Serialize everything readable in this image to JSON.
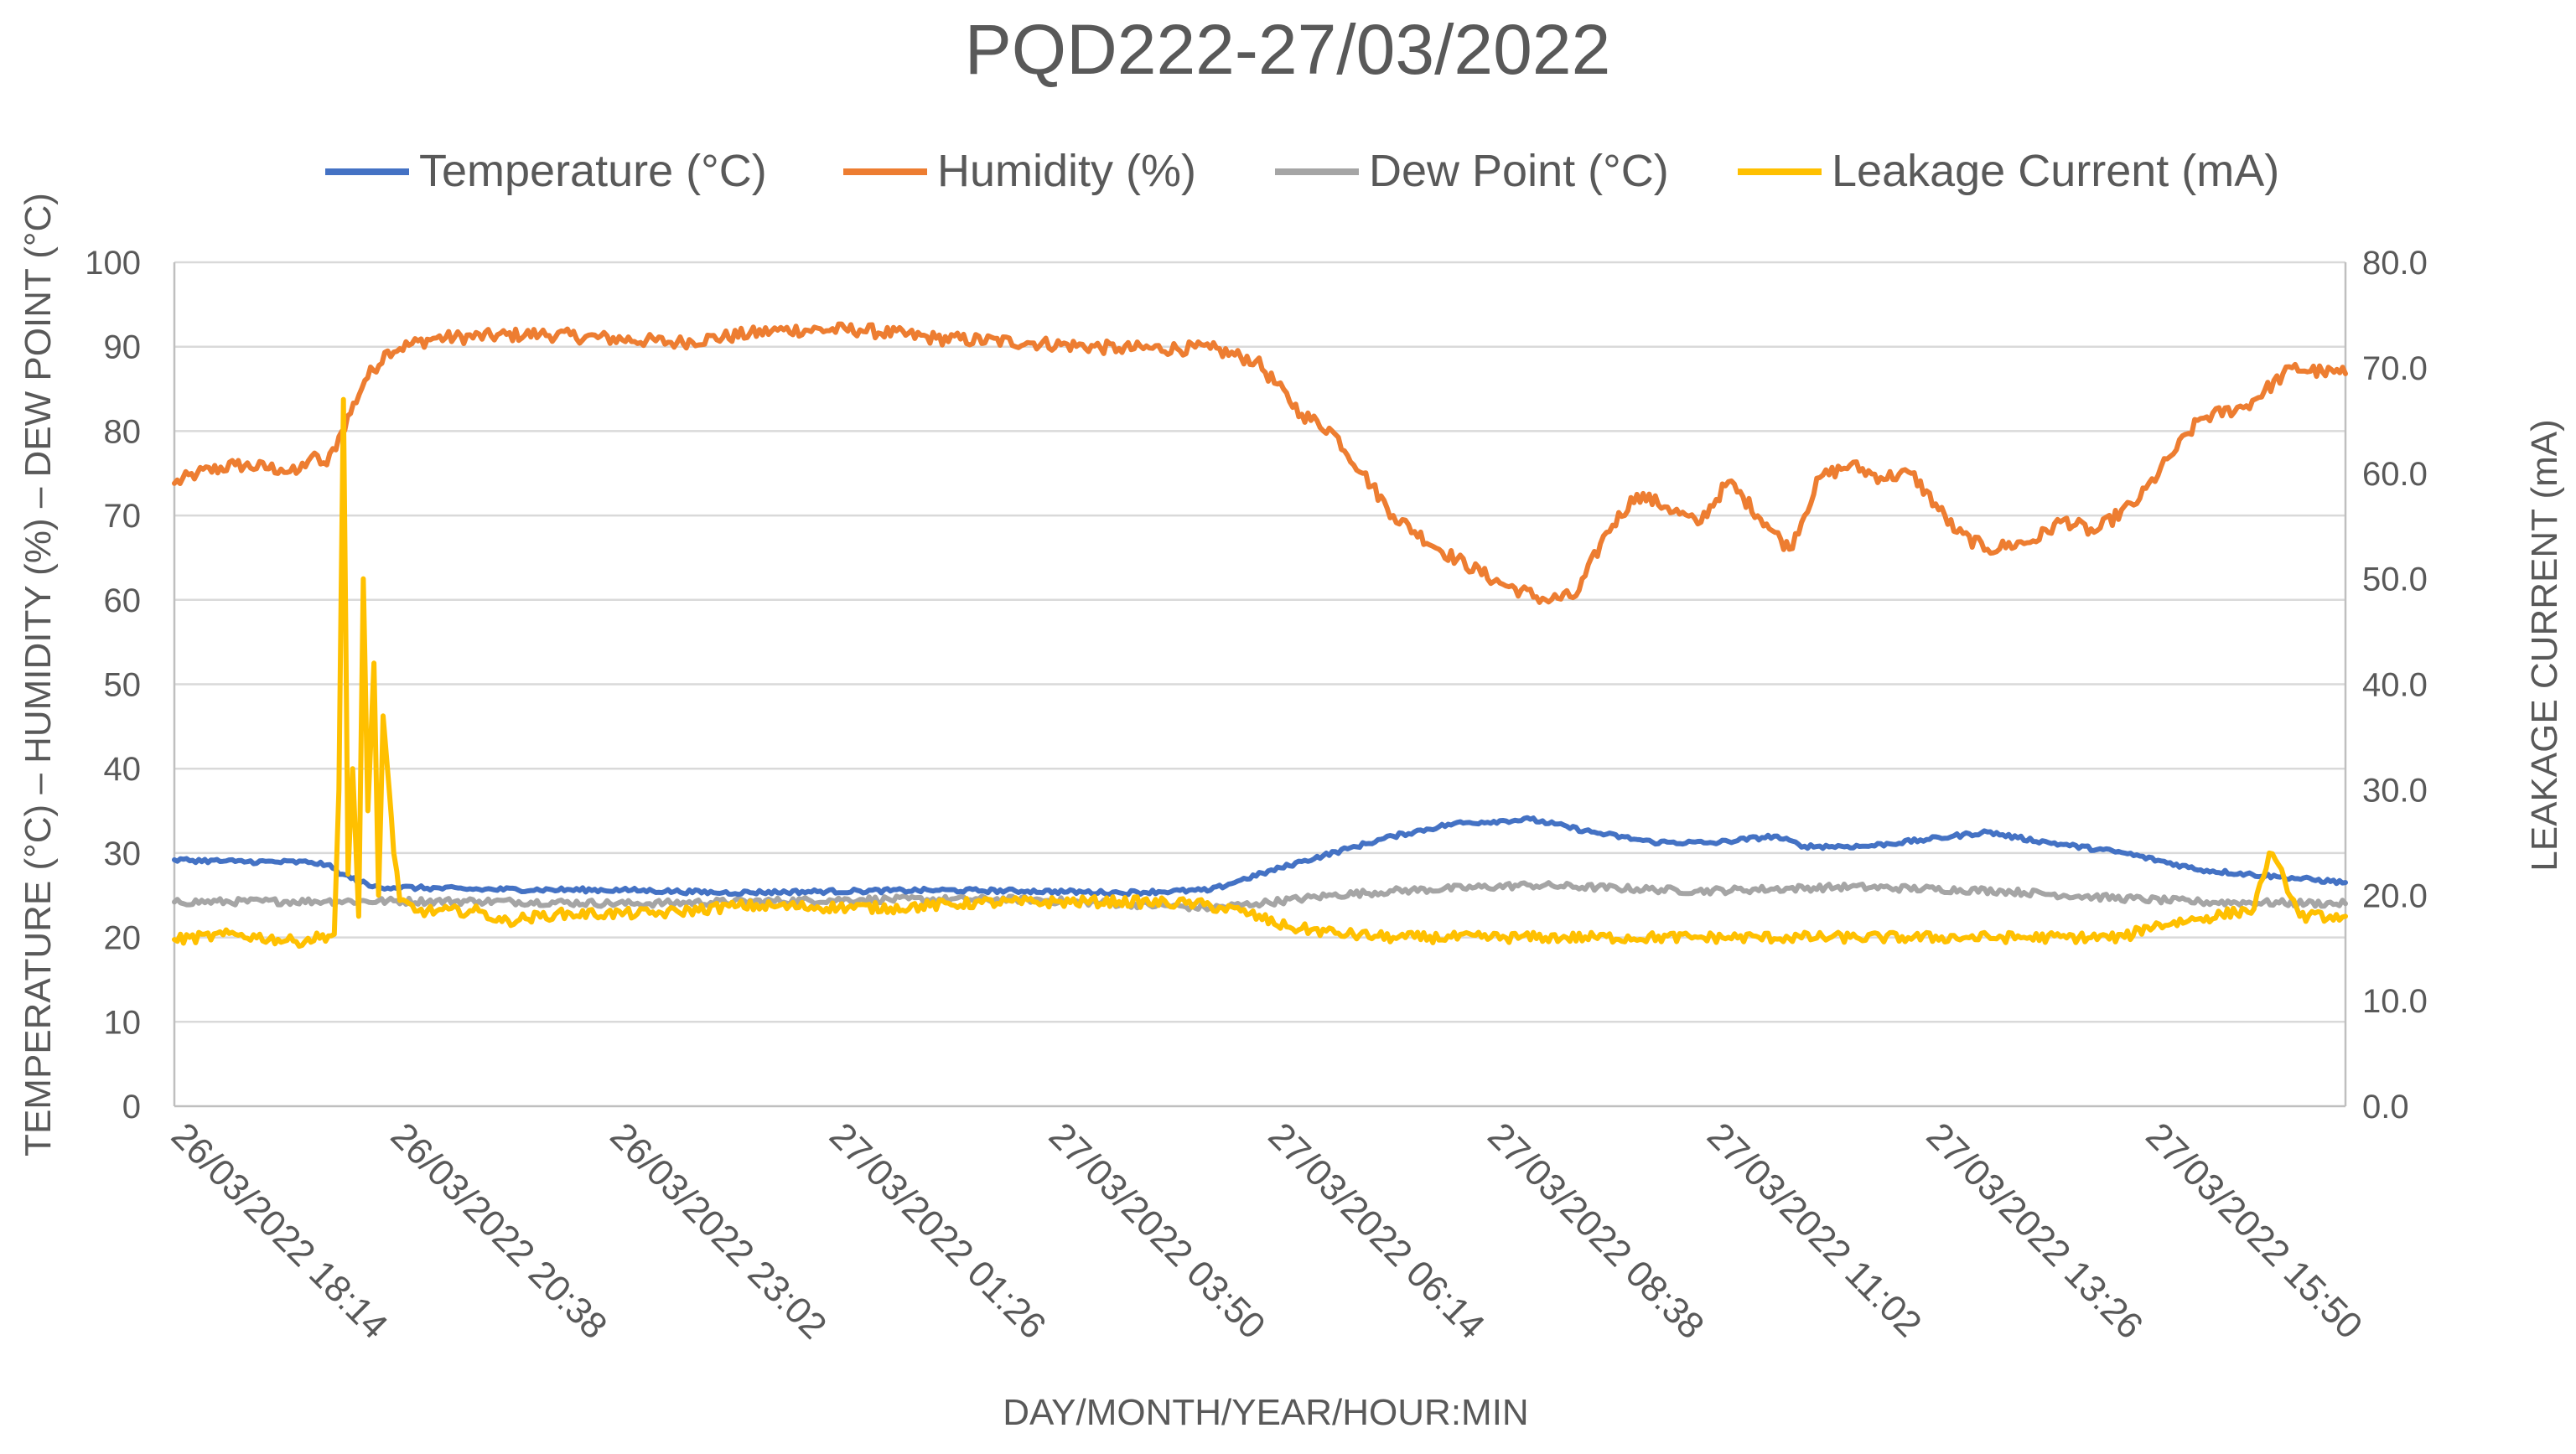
{
  "chart_data": {
    "type": "line",
    "title": "PQD222-27/03/2022",
    "xlabel": "DAY/MONTH/YEAR/HOUR:MIN",
    "ylabel": "TEMPERATURE (°C) – HUMIDITY (%) – DEW POINT (°C)",
    "y2label": "LEAKAGE CURRENT (mA)",
    "ylim": [
      0,
      100
    ],
    "y2lim": [
      0,
      80
    ],
    "y_ticks": [
      "0",
      "10",
      "20",
      "30",
      "40",
      "50",
      "60",
      "70",
      "80",
      "90",
      "100"
    ],
    "y2_ticks": [
      "0.0",
      "10.0",
      "20.0",
      "30.0",
      "40.0",
      "50.0",
      "60.0",
      "70.0",
      "80.0"
    ],
    "x_tick_labels": [
      "26/03/2022 18:14",
      "26/03/2022 20:38",
      "26/03/2022 23:02",
      "27/03/2022 01:26",
      "27/03/2022 03:50",
      "27/03/2022 06:14",
      "27/03/2022 08:38",
      "27/03/2022 11:02",
      "27/03/2022 13:26",
      "27/03/2022 15:50"
    ],
    "x_unit": "minutes since 26/03/2022 18:14",
    "xlim": [
      0,
      1425
    ],
    "legend_position": "top",
    "grid": true,
    "series": [
      {
        "name": "Temperature (°C)",
        "axis": "left",
        "color": "#4472C4",
        "points": [
          [
            0,
            29.2
          ],
          [
            40,
            29.0
          ],
          [
            90,
            28.9
          ],
          [
            100,
            28.6
          ],
          [
            110,
            27.5
          ],
          [
            130,
            26.0
          ],
          [
            200,
            25.7
          ],
          [
            300,
            25.6
          ],
          [
            360,
            25.3
          ],
          [
            450,
            25.5
          ],
          [
            500,
            25.6
          ],
          [
            560,
            25.5
          ],
          [
            620,
            25.3
          ],
          [
            680,
            25.6
          ],
          [
            700,
            26.8
          ],
          [
            740,
            29.0
          ],
          [
            770,
            30.5
          ],
          [
            800,
            32.0
          ],
          [
            840,
            33.5
          ],
          [
            890,
            34.0
          ],
          [
            930,
            32.5
          ],
          [
            970,
            31.3
          ],
          [
            1010,
            31.2
          ],
          [
            1050,
            32.0
          ],
          [
            1070,
            30.8
          ],
          [
            1110,
            30.8
          ],
          [
            1150,
            31.6
          ],
          [
            1190,
            32.5
          ],
          [
            1210,
            31.8
          ],
          [
            1240,
            31.0
          ],
          [
            1280,
            30.0
          ],
          [
            1330,
            28.0
          ],
          [
            1380,
            27.2
          ],
          [
            1425,
            26.5
          ]
        ],
        "noise": 0.25
      },
      {
        "name": "Humidity (%)",
        "axis": "left",
        "color": "#ED7D31",
        "points": [
          [
            0,
            73.8
          ],
          [
            15,
            75.0
          ],
          [
            40,
            76.0
          ],
          [
            70,
            75.5
          ],
          [
            80,
            75.0
          ],
          [
            90,
            77.0
          ],
          [
            100,
            76.0
          ],
          [
            110,
            80.0
          ],
          [
            125,
            86.0
          ],
          [
            140,
            89.5
          ],
          [
            170,
            91.0
          ],
          [
            240,
            91.5
          ],
          [
            330,
            90.5
          ],
          [
            400,
            92.0
          ],
          [
            450,
            92.0
          ],
          [
            500,
            91.0
          ],
          [
            560,
            90.5
          ],
          [
            620,
            89.8
          ],
          [
            680,
            89.8
          ],
          [
            710,
            88.3
          ],
          [
            740,
            82.0
          ],
          [
            760,
            80.0
          ],
          [
            780,
            75.0
          ],
          [
            800,
            70.0
          ],
          [
            830,
            66.0
          ],
          [
            870,
            62.0
          ],
          [
            900,
            60.0
          ],
          [
            920,
            60.5
          ],
          [
            940,
            68.0
          ],
          [
            960,
            72.5
          ],
          [
            980,
            71.0
          ],
          [
            1000,
            69.0
          ],
          [
            1020,
            74.0
          ],
          [
            1045,
            69.0
          ],
          [
            1060,
            66.0
          ],
          [
            1080,
            74.5
          ],
          [
            1100,
            76.0
          ],
          [
            1120,
            74.5
          ],
          [
            1140,
            75.0
          ],
          [
            1170,
            68.0
          ],
          [
            1190,
            66.0
          ],
          [
            1220,
            67.0
          ],
          [
            1240,
            69.5
          ],
          [
            1260,
            68.0
          ],
          [
            1290,
            72.0
          ],
          [
            1310,
            77.0
          ],
          [
            1330,
            81.5
          ],
          [
            1360,
            83.0
          ],
          [
            1390,
            87.5
          ],
          [
            1410,
            87.0
          ],
          [
            1425,
            86.8
          ]
        ],
        "noise": 0.8
      },
      {
        "name": "Dew Point (°C)",
        "axis": "left",
        "color": "#A5A5A5",
        "points": [
          [
            0,
            24.2
          ],
          [
            100,
            24.3
          ],
          [
            200,
            24.3
          ],
          [
            300,
            24.0
          ],
          [
            450,
            24.5
          ],
          [
            560,
            24.5
          ],
          [
            680,
            23.5
          ],
          [
            710,
            24.0
          ],
          [
            760,
            25.0
          ],
          [
            800,
            25.5
          ],
          [
            890,
            26.2
          ],
          [
            1000,
            25.5
          ],
          [
            1100,
            26.0
          ],
          [
            1200,
            25.5
          ],
          [
            1260,
            24.8
          ],
          [
            1330,
            24.2
          ],
          [
            1425,
            24.0
          ]
        ],
        "noise": 0.4
      },
      {
        "name": "Leakage Current (mA)",
        "axis": "right",
        "color": "#FFC000",
        "points": [
          [
            0,
            15.8
          ],
          [
            40,
            16.3
          ],
          [
            80,
            15.6
          ],
          [
            105,
            16.3
          ],
          [
            108,
            30
          ],
          [
            111,
            67
          ],
          [
            114,
            22
          ],
          [
            117,
            32
          ],
          [
            121,
            18
          ],
          [
            124,
            50
          ],
          [
            127,
            28
          ],
          [
            131,
            42
          ],
          [
            134,
            20
          ],
          [
            137,
            37
          ],
          [
            141,
            30
          ],
          [
            144,
            24
          ],
          [
            148,
            19.5
          ],
          [
            160,
            18.5
          ],
          [
            200,
            18.5
          ],
          [
            215,
            17.5
          ],
          [
            250,
            18.2
          ],
          [
            320,
            18.3
          ],
          [
            370,
            19.0
          ],
          [
            470,
            18.8
          ],
          [
            530,
            19.3
          ],
          [
            620,
            19.4
          ],
          [
            670,
            19.2
          ],
          [
            700,
            18.5
          ],
          [
            730,
            17.0
          ],
          [
            770,
            16.3
          ],
          [
            800,
            16.0
          ],
          [
            900,
            16.0
          ],
          [
            1000,
            16.0
          ],
          [
            1100,
            16.0
          ],
          [
            1200,
            16.0
          ],
          [
            1280,
            16.0
          ],
          [
            1295,
            17.0
          ],
          [
            1330,
            17.8
          ],
          [
            1365,
            18.7
          ],
          [
            1375,
            24.0
          ],
          [
            1385,
            21.5
          ],
          [
            1395,
            18.0
          ],
          [
            1425,
            18.0
          ]
        ],
        "noise": 0.5
      }
    ]
  }
}
